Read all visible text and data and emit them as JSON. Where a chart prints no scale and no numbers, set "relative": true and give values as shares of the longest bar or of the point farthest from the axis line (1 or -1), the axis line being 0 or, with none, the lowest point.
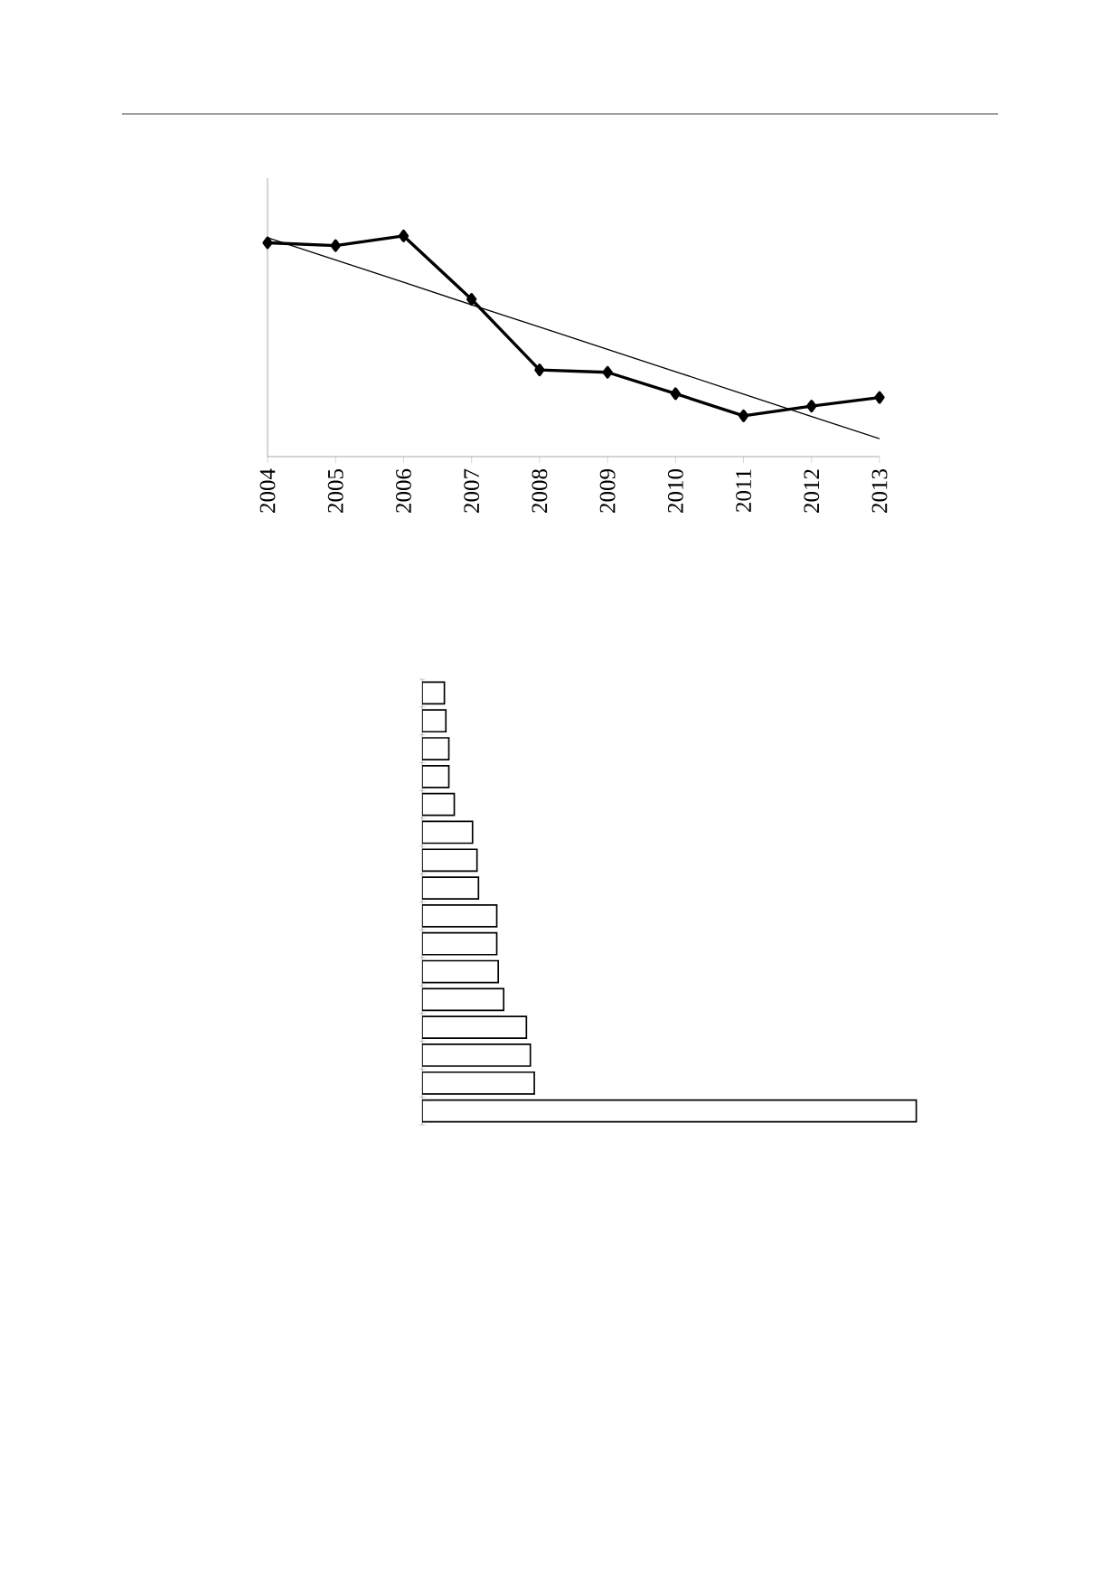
{
  "chart_data": [
    {
      "type": "line",
      "relative": true,
      "categories": [
        "2004",
        "2005",
        "2006",
        "2007",
        "2008",
        "2009",
        "2010",
        "2011",
        "2012",
        "2013"
      ],
      "series": [
        {
          "color": "#000000",
          "marker": "diamond",
          "values": [
            0.969,
            0.956,
            1,
            0.713,
            0.393,
            0.382,
            0.285,
            0.185,
            0.229,
            0.268
          ]
        },
        {
          "color": "#000000",
          "marker": "none",
          "values": [
            0.992,
            0.891,
            0.79,
            0.688,
            0.587,
            0.486,
            0.385,
            0.283,
            0.182,
            0.081
          ]
        }
      ]
    },
    {
      "type": "bar",
      "orientation": "horizontal",
      "relative": true,
      "color": "#ffffff",
      "categories": [
        null,
        null,
        null,
        null,
        null,
        null,
        null,
        null,
        null,
        null,
        null,
        null,
        null,
        null,
        null,
        null
      ],
      "values": [
        0.045,
        0.048,
        0.054,
        0.054,
        0.065,
        0.102,
        0.111,
        0.114,
        0.151,
        0.151,
        0.154,
        0.165,
        0.211,
        0.219,
        0.227,
        1
      ]
    }
  ]
}
